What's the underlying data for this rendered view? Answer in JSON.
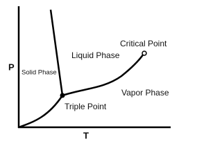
{
  "axes": {
    "y_label": "P",
    "x_label": "T"
  },
  "regions": {
    "solid": "Solid Phase",
    "liquid": "Liquid Phase",
    "vapor": "Vapor Phase"
  },
  "points": {
    "critical": "Critical Point",
    "triple": "Triple Point"
  }
}
